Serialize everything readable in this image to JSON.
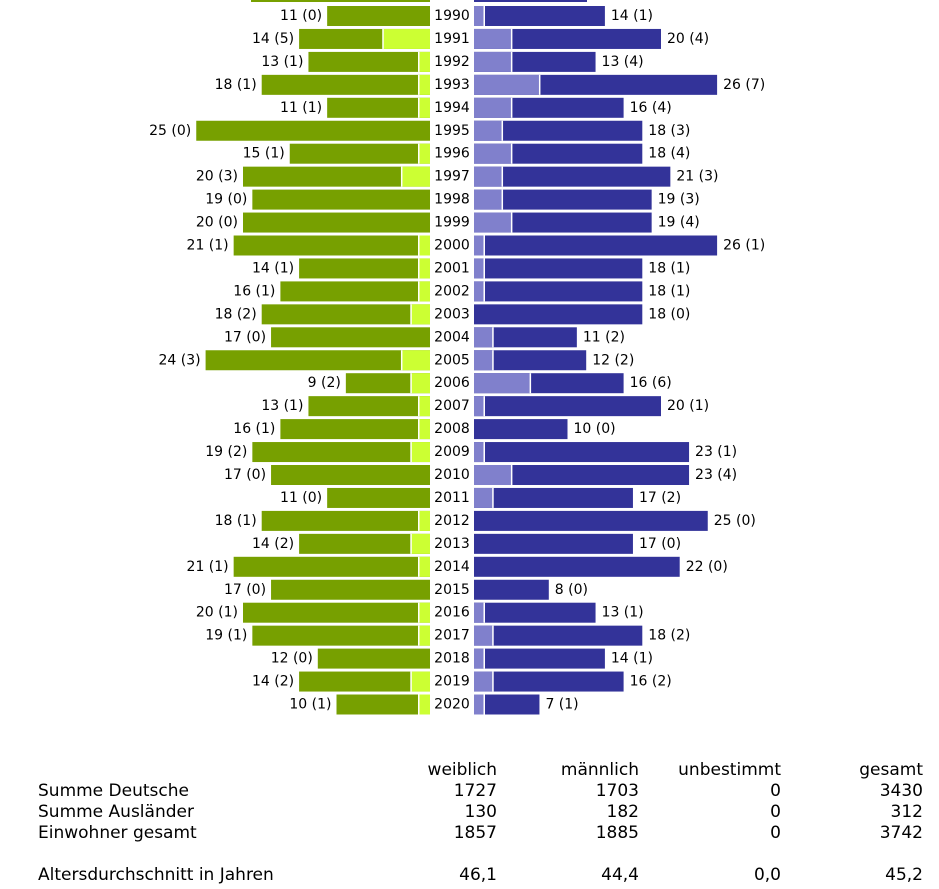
{
  "chart_data": {
    "type": "bar",
    "colors": {
      "female_german": "#77a000",
      "female_foreign": "#ccff33",
      "male_german": "#333399",
      "male_foreign": "#8080cc",
      "separator": "#ffffff"
    },
    "rows": [
      {
        "year": "1990",
        "female_total": 11,
        "female_foreign": 0,
        "male_total": 14,
        "male_foreign": 1,
        "female_label": "11 (0)",
        "male_label": "14 (1)"
      },
      {
        "year": "1991",
        "female_total": 14,
        "female_foreign": 5,
        "male_total": 20,
        "male_foreign": 4,
        "female_label": "14 (5)",
        "male_label": "20 (4)"
      },
      {
        "year": "1992",
        "female_total": 13,
        "female_foreign": 1,
        "male_total": 13,
        "male_foreign": 4,
        "female_label": "13 (1)",
        "male_label": "13 (4)"
      },
      {
        "year": "1993",
        "female_total": 18,
        "female_foreign": 1,
        "male_total": 26,
        "male_foreign": 7,
        "female_label": "18 (1)",
        "male_label": "26 (7)"
      },
      {
        "year": "1994",
        "female_total": 11,
        "female_foreign": 1,
        "male_total": 16,
        "male_foreign": 4,
        "female_label": "11 (1)",
        "male_label": "16 (4)"
      },
      {
        "year": "1995",
        "female_total": 25,
        "female_foreign": 0,
        "male_total": 18,
        "male_foreign": 3,
        "female_label": "25 (0)",
        "male_label": "18 (3)"
      },
      {
        "year": "1996",
        "female_total": 15,
        "female_foreign": 1,
        "male_total": 18,
        "male_foreign": 4,
        "female_label": "15 (1)",
        "male_label": "18 (4)"
      },
      {
        "year": "1997",
        "female_total": 20,
        "female_foreign": 3,
        "male_total": 21,
        "male_foreign": 3,
        "female_label": "20 (3)",
        "male_label": "21 (3)"
      },
      {
        "year": "1998",
        "female_total": 19,
        "female_foreign": 0,
        "male_total": 19,
        "male_foreign": 3,
        "female_label": "19 (0)",
        "male_label": "19 (3)"
      },
      {
        "year": "1999",
        "female_total": 20,
        "female_foreign": 0,
        "male_total": 19,
        "male_foreign": 4,
        "female_label": "20 (0)",
        "male_label": "19 (4)"
      },
      {
        "year": "2000",
        "female_total": 21,
        "female_foreign": 1,
        "male_total": 26,
        "male_foreign": 1,
        "female_label": "21 (1)",
        "male_label": "26 (1)"
      },
      {
        "year": "2001",
        "female_total": 14,
        "female_foreign": 1,
        "male_total": 18,
        "male_foreign": 1,
        "female_label": "14 (1)",
        "male_label": "18 (1)"
      },
      {
        "year": "2002",
        "female_total": 16,
        "female_foreign": 1,
        "male_total": 18,
        "male_foreign": 1,
        "female_label": "16 (1)",
        "male_label": "18 (1)"
      },
      {
        "year": "2003",
        "female_total": 18,
        "female_foreign": 2,
        "male_total": 18,
        "male_foreign": 0,
        "female_label": "18 (2)",
        "male_label": "18 (0)"
      },
      {
        "year": "2004",
        "female_total": 17,
        "female_foreign": 0,
        "male_total": 11,
        "male_foreign": 2,
        "female_label": "17 (0)",
        "male_label": "11 (2)"
      },
      {
        "year": "2005",
        "female_total": 24,
        "female_foreign": 3,
        "male_total": 12,
        "male_foreign": 2,
        "female_label": "24 (3)",
        "male_label": "12 (2)"
      },
      {
        "year": "2006",
        "female_total": 9,
        "female_foreign": 2,
        "male_total": 16,
        "male_foreign": 6,
        "female_label": "9 (2)",
        "male_label": "16 (6)"
      },
      {
        "year": "2007",
        "female_total": 13,
        "female_foreign": 1,
        "male_total": 20,
        "male_foreign": 1,
        "female_label": "13 (1)",
        "male_label": "20 (1)"
      },
      {
        "year": "2008",
        "female_total": 16,
        "female_foreign": 1,
        "male_total": 10,
        "male_foreign": 0,
        "female_label": "16 (1)",
        "male_label": "10 (0)"
      },
      {
        "year": "2009",
        "female_total": 19,
        "female_foreign": 2,
        "male_total": 23,
        "male_foreign": 1,
        "female_label": "19 (2)",
        "male_label": "23 (1)"
      },
      {
        "year": "2010",
        "female_total": 17,
        "female_foreign": 0,
        "male_total": 23,
        "male_foreign": 4,
        "female_label": "17 (0)",
        "male_label": "23 (4)"
      },
      {
        "year": "2011",
        "female_total": 11,
        "female_foreign": 0,
        "male_total": 17,
        "male_foreign": 2,
        "female_label": "11 (0)",
        "male_label": "17 (2)"
      },
      {
        "year": "2012",
        "female_total": 18,
        "female_foreign": 1,
        "male_total": 25,
        "male_foreign": 0,
        "female_label": "18 (1)",
        "male_label": "25 (0)"
      },
      {
        "year": "2013",
        "female_total": 14,
        "female_foreign": 2,
        "male_total": 17,
        "male_foreign": 0,
        "female_label": "14 (2)",
        "male_label": "17 (0)"
      },
      {
        "year": "2014",
        "female_total": 21,
        "female_foreign": 1,
        "male_total": 22,
        "male_foreign": 0,
        "female_label": "21 (1)",
        "male_label": "22 (0)"
      },
      {
        "year": "2015",
        "female_total": 17,
        "female_foreign": 0,
        "male_total": 8,
        "male_foreign": 0,
        "female_label": "17 (0)",
        "male_label": "8 (0)"
      },
      {
        "year": "2016",
        "female_total": 20,
        "female_foreign": 1,
        "male_total": 13,
        "male_foreign": 1,
        "female_label": "20 (1)",
        "male_label": "13 (1)"
      },
      {
        "year": "2017",
        "female_total": 19,
        "female_foreign": 1,
        "male_total": 18,
        "male_foreign": 2,
        "female_label": "19 (1)",
        "male_label": "18 (2)"
      },
      {
        "year": "2018",
        "female_total": 12,
        "female_foreign": 0,
        "male_total": 14,
        "male_foreign": 1,
        "female_label": "12 (0)",
        "male_label": "14 (1)"
      },
      {
        "year": "2019",
        "female_total": 14,
        "female_foreign": 2,
        "male_total": 16,
        "male_foreign": 2,
        "female_label": "14 (2)",
        "male_label": "16 (2)"
      },
      {
        "year": "2020",
        "female_total": 10,
        "female_foreign": 1,
        "male_total": 7,
        "male_foreign": 1,
        "female_label": "10 (1)",
        "male_label": "7 (1)"
      }
    ]
  },
  "summary": {
    "headers": {
      "weiblich": "weiblich",
      "maennlich": "männlich",
      "unbestimmt": "unbestimmt",
      "gesamt": "gesamt"
    },
    "rows": [
      {
        "label": "Summe Deutsche",
        "weiblich": "1727",
        "maennlich": "1703",
        "unbestimmt": "0",
        "gesamt": "3430"
      },
      {
        "label": "Summe Ausländer",
        "weiblich": "130",
        "maennlich": "182",
        "unbestimmt": "0",
        "gesamt": "312"
      },
      {
        "label": "Einwohner gesamt",
        "weiblich": "1857",
        "maennlich": "1885",
        "unbestimmt": "0",
        "gesamt": "3742"
      }
    ],
    "average": {
      "label": "Altersdurchschnitt in Jahren",
      "weiblich": "46,1",
      "maennlich": "44,4",
      "unbestimmt": "0,0",
      "gesamt": "45,2"
    }
  }
}
